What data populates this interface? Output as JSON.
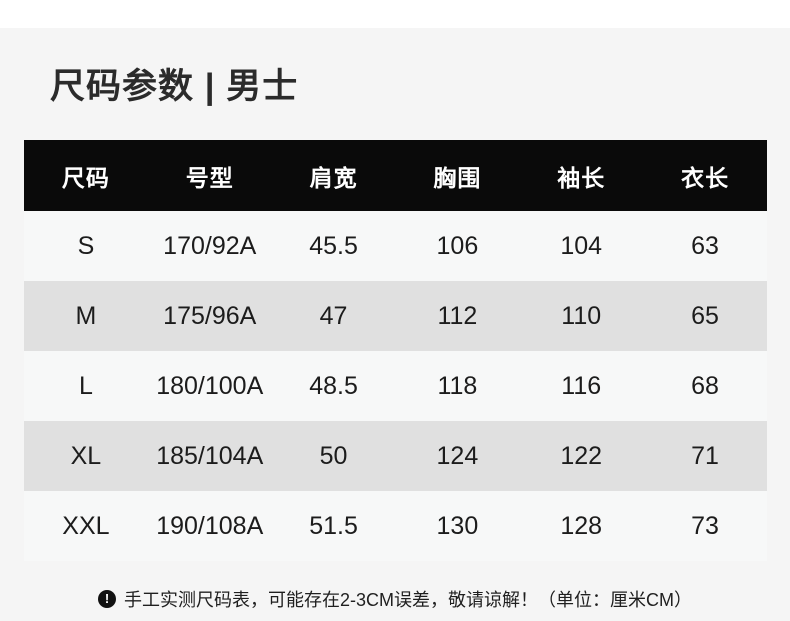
{
  "page": {
    "title": "尺码参数 | 男士",
    "note": {
      "icon": "!",
      "text": "手工实测尺码表，可能存在2-3CM误差，敬请谅解！（单位：厘米CM）"
    }
  },
  "table": {
    "headers": [
      "尺码",
      "号型",
      "肩宽",
      "胸围",
      "袖长",
      "衣长"
    ],
    "rows": [
      [
        "S",
        "170/92A",
        "45.5",
        "106",
        "104",
        "63"
      ],
      [
        "M",
        "175/96A",
        "47",
        "112",
        "110",
        "65"
      ],
      [
        "L",
        "180/100A",
        "48.5",
        "118",
        "116",
        "68"
      ],
      [
        "XL",
        "185/104A",
        "50",
        "124",
        "122",
        "71"
      ],
      [
        "XXL",
        "190/108A",
        "51.5",
        "130",
        "128",
        "73"
      ]
    ]
  },
  "colors": {
    "page_background": "#f5f5f5",
    "top_strip_background": "#ffffff",
    "header_background": "#0a0a0a",
    "header_text": "#ffffff",
    "alt_row_background": "#e0e0e0",
    "plain_row_background": "#f7f8f8",
    "body_text": "#1c1c1c",
    "title_text": "#2b2b2b"
  }
}
